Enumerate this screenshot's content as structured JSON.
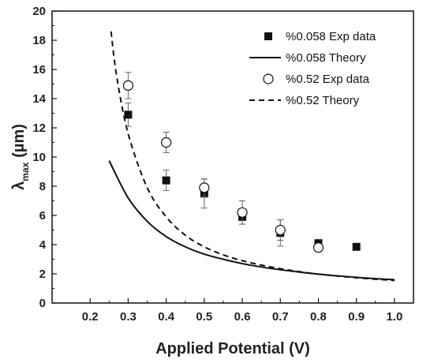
{
  "chart_data": {
    "type": "scatter",
    "xlabel": "Applied Potential (V)",
    "ylabel_main": "λ",
    "ylabel_sub": "max",
    "ylabel_unit": "(µm)",
    "xlim": [
      0.1,
      1.05
    ],
    "ylim": [
      0,
      20
    ],
    "xticks": [
      0.2,
      0.3,
      0.4,
      0.5,
      0.6,
      0.7,
      0.8,
      0.9,
      1.0
    ],
    "xtick_labels": [
      "0.2",
      "0.3",
      "0.4",
      "0.5",
      "0.6",
      "0.7",
      "0.8",
      "0.9",
      "1.0"
    ],
    "yticks": [
      0,
      2,
      4,
      6,
      8,
      10,
      12,
      14,
      16,
      18,
      20
    ],
    "ytick_labels": [
      "0",
      "2",
      "4",
      "6",
      "8",
      "10",
      "12",
      "14",
      "16",
      "18",
      "20"
    ],
    "grid": false,
    "legend_position": "top-right",
    "series": [
      {
        "name": "%0.058 Exp data",
        "kind": "points",
        "marker": "filled-square",
        "color": "#111111",
        "x": [
          0.3,
          0.4,
          0.5,
          0.6,
          0.7,
          0.8,
          0.9
        ],
        "y": [
          12.9,
          8.4,
          7.5,
          5.9,
          4.8,
          4.1,
          3.85
        ],
        "err": [
          0.8,
          0.7,
          1.0,
          0.5,
          0.9,
          0.2,
          0.0
        ]
      },
      {
        "name": "%0.058 Theory",
        "kind": "line",
        "dash": "solid",
        "color": "#111111",
        "x": [
          0.25,
          0.3,
          0.35,
          0.4,
          0.45,
          0.5,
          0.55,
          0.6,
          0.65,
          0.7,
          0.75,
          0.8,
          0.85,
          0.9,
          0.95,
          1.0
        ],
        "y": [
          9.75,
          7.2,
          5.6,
          4.55,
          3.85,
          3.35,
          3.0,
          2.7,
          2.47,
          2.28,
          2.12,
          1.98,
          1.86,
          1.76,
          1.67,
          1.6
        ]
      },
      {
        "name": "%0.52 Exp data",
        "kind": "points",
        "marker": "open-circle",
        "color": "#111111",
        "x": [
          0.3,
          0.4,
          0.5,
          0.6,
          0.7,
          0.8
        ],
        "y": [
          14.9,
          11.0,
          7.9,
          6.2,
          5.0,
          3.8
        ],
        "err": [
          0.9,
          0.7,
          0.6,
          0.8,
          0.7,
          0.15
        ]
      },
      {
        "name": "%0.52 Theory",
        "kind": "line",
        "dash": "dashed",
        "color": "#111111",
        "x": [
          0.255,
          0.27,
          0.3,
          0.35,
          0.4,
          0.45,
          0.5,
          0.55,
          0.6,
          0.65,
          0.7,
          0.75,
          0.8,
          0.85,
          0.9,
          0.95,
          1.0
        ],
        "y": [
          18.6,
          15.5,
          11.6,
          7.9,
          5.9,
          4.65,
          3.85,
          3.3,
          2.9,
          2.6,
          2.35,
          2.15,
          1.98,
          1.85,
          1.73,
          1.63,
          1.55
        ]
      }
    ]
  }
}
